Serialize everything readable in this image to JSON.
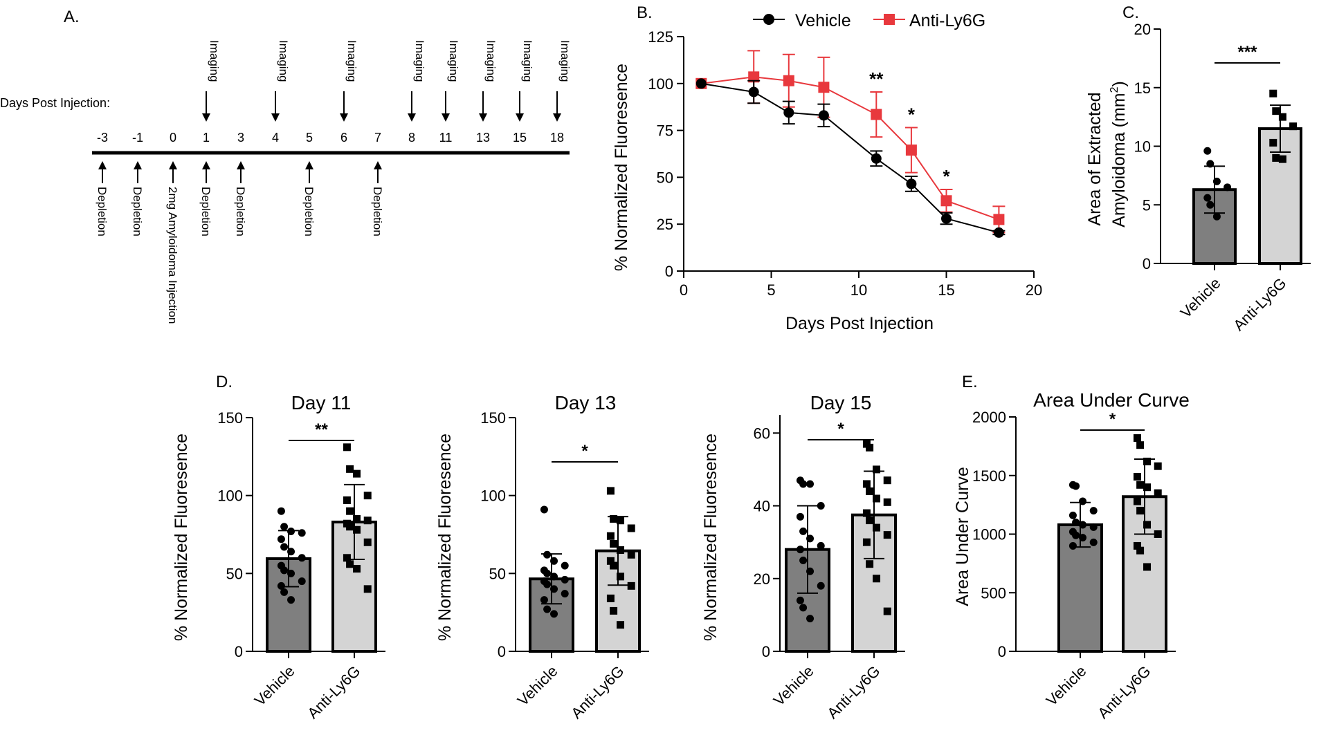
{
  "colors": {
    "vehicle_line": "#000000",
    "antily6g_line": "#e8383d",
    "vehicle_bar": "#7f7f7f",
    "antily6g_bar": "#d4d4d4",
    "axis": "#000000"
  },
  "panel_a": {
    "label": "A.",
    "row_title": "Days Post Injection:",
    "days": [
      "-3",
      "-1",
      "0",
      "1",
      "3",
      "4",
      "5",
      "6",
      "7",
      "8",
      "11",
      "13",
      "15",
      "18"
    ],
    "imaging_text": "Imaging",
    "imaging_days": [
      "1",
      "4",
      "6",
      "8",
      "11",
      "13",
      "15",
      "18"
    ],
    "below_events": [
      {
        "day": "-3",
        "text": "Depletion"
      },
      {
        "day": "-1",
        "text": "Depletion"
      },
      {
        "day": "0",
        "text": "2mg Amyloidoma Injection"
      },
      {
        "day": "1",
        "text": "Depletion"
      },
      {
        "day": "3",
        "text": "Depletion"
      },
      {
        "day": "5",
        "text": "Depletion"
      },
      {
        "day": "7",
        "text": "Depletion"
      }
    ]
  },
  "chart_data": [
    {
      "id": "B",
      "type": "line",
      "panel_label": "B.",
      "title": "",
      "xlabel": "Days Post Injection",
      "ylabel": "% Normalized Fluoresence",
      "xlim": [
        0,
        20
      ],
      "ylim": [
        0,
        125
      ],
      "xticks": [
        0,
        5,
        10,
        15,
        20
      ],
      "yticks": [
        0,
        25,
        50,
        75,
        100,
        125
      ],
      "legend": "top",
      "series": [
        {
          "name": "Vehicle",
          "color": "#000000",
          "marker": "circle",
          "x": [
            1,
            4,
            6,
            8,
            11,
            13,
            15,
            18
          ],
          "y": [
            100,
            95.5,
            84.5,
            83,
            60,
            46.5,
            28,
            20.5
          ],
          "err": [
            0,
            6,
            6,
            6,
            4,
            4,
            3,
            1
          ]
        },
        {
          "name": "Anti-Ly6G",
          "color": "#e8383d",
          "marker": "square",
          "x": [
            1,
            4,
            6,
            8,
            11,
            13,
            15,
            18
          ],
          "y": [
            100,
            103.5,
            101.5,
            98,
            83.5,
            64.5,
            37.5,
            27.5
          ],
          "err": [
            0,
            14,
            14,
            16,
            12,
            12,
            6,
            7
          ]
        }
      ],
      "annotations": [
        {
          "x": 11,
          "text": "**"
        },
        {
          "x": 13,
          "text": "*"
        },
        {
          "x": 15,
          "text": "*"
        }
      ]
    },
    {
      "id": "C",
      "type": "bar",
      "panel_label": "C.",
      "title": "",
      "ylabel_line1": "Area of Extracted",
      "ylabel_line2": "Amyloidoma (mm",
      "ylabel_sup": "2",
      "ylabel_close": ")",
      "categories": [
        "Vehicle",
        "Anti-Ly6G"
      ],
      "ylim": [
        0,
        20
      ],
      "yticks": [
        0,
        5,
        10,
        15,
        20
      ],
      "values": [
        6.3,
        11.5
      ],
      "sd": [
        2.0,
        2.0
      ],
      "significance": "***",
      "points": [
        [
          9.6,
          8.5,
          7.0,
          6.5,
          5.6,
          5.0,
          4.0
        ],
        [
          14.5,
          13.0,
          12.5,
          11.7,
          10.3,
          9.0,
          8.9
        ]
      ]
    },
    {
      "id": "D1",
      "type": "bar",
      "panel_label": "D.",
      "title": "Day 11",
      "ylabel": "% Normalized Fluoresence",
      "categories": [
        "Vehicle",
        "Anti-Ly6G"
      ],
      "ylim": [
        0,
        150
      ],
      "yticks": [
        0,
        50,
        100,
        150
      ],
      "values": [
        59.5,
        83
      ],
      "sd": [
        18,
        24
      ],
      "significance": "**",
      "points": [
        [
          90,
          80,
          77,
          76,
          72,
          67,
          64,
          60,
          55,
          52,
          50,
          45,
          42,
          38,
          33
        ],
        [
          131,
          117,
          114,
          100,
          97,
          90,
          85,
          84,
          82,
          80,
          78,
          70,
          60,
          56,
          53,
          40
        ]
      ]
    },
    {
      "id": "D2",
      "type": "bar",
      "panel_label": "",
      "title": "Day 13",
      "ylabel": "% Normalized Fluoresence",
      "categories": [
        "Vehicle",
        "Anti-Ly6G"
      ],
      "ylim": [
        0,
        150
      ],
      "yticks": [
        0,
        50,
        100,
        150
      ],
      "values": [
        46.5,
        64.5
      ],
      "sd": [
        16,
        22
      ],
      "significance": "*",
      "points": [
        [
          91,
          62,
          58,
          55,
          52,
          50,
          48,
          46,
          45,
          43,
          40,
          37,
          33,
          27,
          24
        ],
        [
          103,
          85,
          84,
          79,
          74,
          69,
          65,
          62,
          58,
          55,
          48,
          42,
          34,
          26,
          17
        ]
      ]
    },
    {
      "id": "D3",
      "type": "bar",
      "panel_label": "",
      "title": "Day 15",
      "ylabel": "% Normalized Fluoresence",
      "categories": [
        "Vehicle",
        "Anti-Ly6G"
      ],
      "ylim": [
        0,
        65
      ],
      "yticks": [
        0,
        20,
        40,
        60
      ],
      "values": [
        28,
        37.5
      ],
      "sd": [
        12,
        12
      ],
      "significance": "*",
      "points": [
        [
          47,
          46,
          46,
          40,
          37,
          33,
          31,
          29,
          28,
          25,
          22,
          18,
          14,
          12,
          9
        ],
        [
          57,
          56,
          50,
          47,
          46,
          44,
          42,
          41,
          38,
          36,
          34,
          32,
          30,
          24,
          20,
          11
        ]
      ]
    },
    {
      "id": "E",
      "type": "bar",
      "panel_label": "E.",
      "title": "Area Under Curve",
      "ylabel": "Area Under Curve",
      "categories": [
        "Vehicle",
        "Anti-Ly6G"
      ],
      "ylim": [
        0,
        2000
      ],
      "yticks": [
        0,
        500,
        1000,
        1500,
        2000
      ],
      "values": [
        1080,
        1320
      ],
      "sd": [
        190,
        320
      ],
      "significance": "*",
      "points": [
        [
          1420,
          1410,
          1280,
          1200,
          1160,
          1100,
          1080,
          1060,
          1020,
          990,
          970,
          930,
          900
        ],
        [
          1820,
          1760,
          1620,
          1580,
          1490,
          1420,
          1400,
          1350,
          1280,
          1200,
          1080,
          1000,
          900,
          860,
          720
        ]
      ]
    }
  ]
}
